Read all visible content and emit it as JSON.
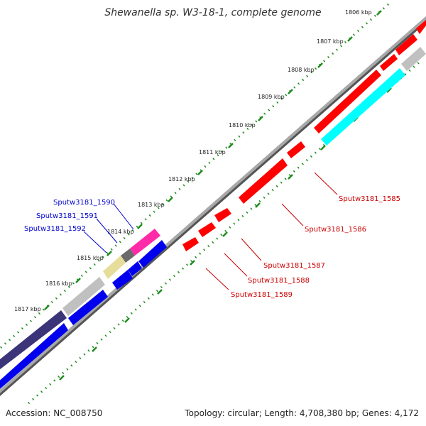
{
  "title": "Shewanella sp. W3-18-1, complete genome",
  "accession": "Accession: NC_008750",
  "summary": "Topology: circular; Length: 4,708,380 bp; Genes: 4,172",
  "colors": {
    "backbone": "#8a8a8a",
    "ticks": "#1d8a1d",
    "red_gene": "#ff0000",
    "cyan_gene": "#00ffff",
    "blue_gene": "#0000ee",
    "navy_gene": "#3b3478",
    "gray_gene": "#c0c0c0",
    "dark_gray_gene": "#6a6a6a",
    "yellow_gene": "#e6dd9a",
    "magenta_gene": "#ff2aa8",
    "red_label": "#cc0000",
    "blue_label": "#0000cc"
  },
  "kbp_labels": [
    "1806 kbp",
    "1807 kbp",
    "1808 kbp",
    "1809 kbp",
    "1810 kbp",
    "1811 kbp",
    "1812 kbp",
    "1813 kbp",
    "1814 kbp",
    "1815 kbp",
    "1816 kbp",
    "1817 kbp"
  ],
  "genes_right": [
    "Sputw3181_1585",
    "Sputw3181_1586",
    "Sputw3181_1587",
    "Sputw3181_1588",
    "Sputw3181_1589"
  ],
  "genes_left": [
    "Sputw3181_1590",
    "Sputw3181_1591",
    "Sputw3181_1592"
  ]
}
